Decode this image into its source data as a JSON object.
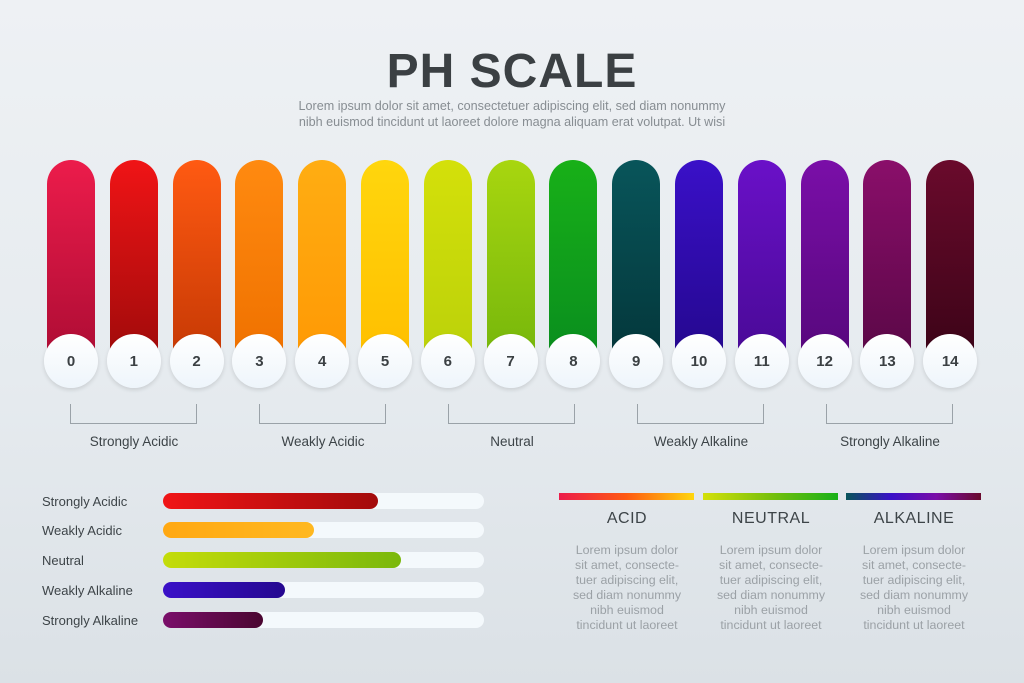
{
  "title": "PH SCALE",
  "subtitle_line1": "Lorem ipsum dolor sit amet, consectetuer adipiscing elit, sed diam nonummy",
  "subtitle_line2": "nibh euismod tincidunt ut laoreet dolore magna aliquam erat volutpat. Ut wisi",
  "scale": [
    {
      "value": "0",
      "top": "#ec1c4b",
      "bottom": "#b00d35"
    },
    {
      "value": "1",
      "top": "#f01416",
      "bottom": "#a30b0b"
    },
    {
      "value": "2",
      "top": "#ff5a12",
      "bottom": "#c83a05"
    },
    {
      "value": "3",
      "top": "#ff8a10",
      "bottom": "#f07200"
    },
    {
      "value": "4",
      "top": "#ffad12",
      "bottom": "#ff9a05"
    },
    {
      "value": "5",
      "top": "#ffd60d",
      "bottom": "#ffc000"
    },
    {
      "value": "6",
      "top": "#d4e00a",
      "bottom": "#bcd20a"
    },
    {
      "value": "7",
      "top": "#a8d60f",
      "bottom": "#78b80c"
    },
    {
      "value": "8",
      "top": "#18b018",
      "bottom": "#0a8f1e"
    },
    {
      "value": "9",
      "top": "#08555a",
      "bottom": "#04383c"
    },
    {
      "value": "10",
      "top": "#3a10c8",
      "bottom": "#250890"
    },
    {
      "value": "11",
      "top": "#6a10c8",
      "bottom": "#4a0a98"
    },
    {
      "value": "12",
      "top": "#7a0ea8",
      "bottom": "#58087e"
    },
    {
      "value": "13",
      "top": "#8a0e6a",
      "bottom": "#5c0848"
    },
    {
      "value": "14",
      "top": "#6a0a2c",
      "bottom": "#3d0418"
    }
  ],
  "groups": [
    {
      "label": "Strongly Acidic"
    },
    {
      "label": "Weakly Acidic"
    },
    {
      "label": "Neutral"
    },
    {
      "label": "Weakly Alkaline"
    },
    {
      "label": "Strongly Alkaline"
    }
  ],
  "bars": [
    {
      "label": "Strongly Acidic",
      "fraction": 0.67,
      "from": "#f01416",
      "to": "#a30b0b"
    },
    {
      "label": "Weakly Acidic",
      "fraction": 0.47,
      "from": "#ffa812",
      "to": "#ffb820"
    },
    {
      "label": "Neutral",
      "fraction": 0.74,
      "from": "#c4dc0a",
      "to": "#7ab80c"
    },
    {
      "label": "Weakly Alkaline",
      "fraction": 0.38,
      "from": "#3a10c8",
      "to": "#250890"
    },
    {
      "label": "Strongly Alkaline",
      "fraction": 0.31,
      "from": "#7a0e6a",
      "to": "#4a0630"
    }
  ],
  "categories": [
    {
      "title": "ACID",
      "gradient": "linear-gradient(90deg, #ec1c4b, #ff5a12, #ffd60d)",
      "text": [
        "Lorem ipsum dolor",
        "sit amet, consecte-",
        "tuer adipiscing elit,",
        "sed diam nonummy",
        "nibh euismod",
        "tincidunt ut laoreet"
      ]
    },
    {
      "title": "NEUTRAL",
      "gradient": "linear-gradient(90deg, #d4e00a, #78c00c, #18b018)",
      "text": [
        "Lorem ipsum dolor",
        "sit amet, consecte-",
        "tuer adipiscing elit,",
        "sed diam nonummy",
        "nibh euismod",
        "tincidunt ut laoreet"
      ]
    },
    {
      "title": "ALKALINE",
      "gradient": "linear-gradient(90deg, #08555a, #3a10c8, #7a0ea8, #6a0a2c)",
      "text": [
        "Lorem ipsum dolor",
        "sit amet, consecte-",
        "tuer adipiscing elit,",
        "sed diam nonummy",
        "nibh euismod",
        "tincidunt ut laoreet"
      ]
    }
  ]
}
